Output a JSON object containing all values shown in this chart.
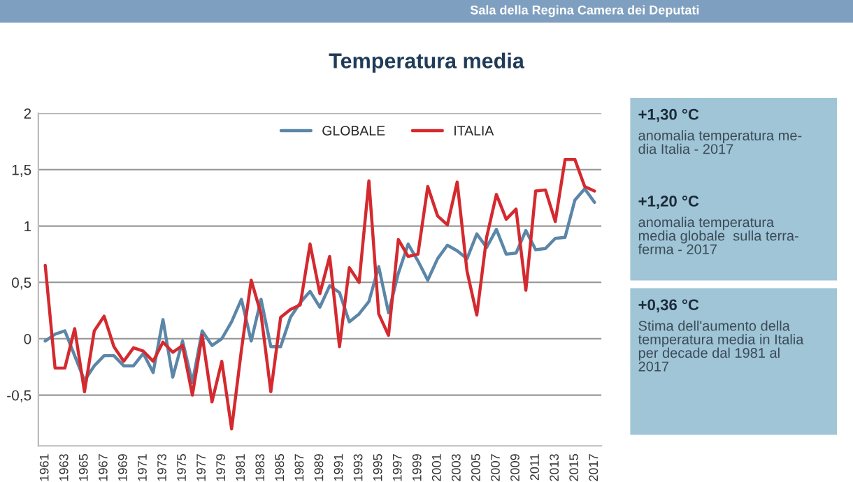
{
  "chart_data": {
    "type": "line",
    "title": "Temperatura media",
    "categories": [
      "1961",
      null,
      "1963",
      null,
      "1965",
      null,
      "1967",
      null,
      "1969",
      null,
      "1971",
      null,
      "1973",
      null,
      "1975",
      null,
      "1977",
      null,
      "1979",
      null,
      "1981",
      null,
      "1983",
      null,
      "1985",
      null,
      "1987",
      null,
      "1989",
      null,
      "1991",
      null,
      "1993",
      null,
      "1995",
      null,
      "1997",
      null,
      "1999",
      null,
      "2001",
      null,
      "2003",
      null,
      "2005",
      null,
      "2007",
      null,
      "2009",
      null,
      "2011",
      null,
      "2013",
      null,
      "2015",
      null,
      "2017"
    ],
    "series": [
      {
        "name": "GLOBALE",
        "color": "#5b86a8",
        "values": [
          -0.02,
          0.04,
          0.07,
          -0.15,
          -0.37,
          -0.24,
          -0.15,
          -0.15,
          -0.24,
          -0.24,
          -0.13,
          -0.3,
          0.17,
          -0.34,
          -0.02,
          -0.39,
          0.07,
          -0.06,
          0,
          0.15,
          0.35,
          -0.02,
          0.35,
          -0.07,
          -0.07,
          0.19,
          0.32,
          0.42,
          0.28,
          0.47,
          0.41,
          0.15,
          0.22,
          0.33,
          0.64,
          0.23,
          0.58,
          0.84,
          0.69,
          0.52,
          0.71,
          0.83,
          0.78,
          0.71,
          0.93,
          0.81,
          0.97,
          0.75,
          0.76,
          0.96,
          0.79,
          0.8,
          0.89,
          0.9,
          1.23,
          1.33,
          1.21
        ]
      },
      {
        "name": "ITALIA",
        "color": "#d42a2f",
        "values": [
          0.65,
          -0.26,
          -0.26,
          0.09,
          -0.47,
          0.07,
          0.2,
          -0.07,
          -0.2,
          -0.08,
          -0.11,
          -0.2,
          -0.03,
          -0.12,
          -0.06,
          -0.5,
          0.03,
          -0.56,
          -0.2,
          -0.8,
          -0.1,
          0.52,
          0.22,
          -0.47,
          0.19,
          0.26,
          0.3,
          0.84,
          0.4,
          0.73,
          -0.07,
          0.63,
          0.5,
          1.4,
          0.22,
          0.03,
          0.88,
          0.73,
          0.75,
          1.35,
          1.09,
          1.01,
          1.39,
          0.6,
          0.21,
          0.9,
          1.28,
          1.06,
          1.15,
          0.43,
          1.31,
          1.32,
          1.04,
          1.59,
          1.59,
          1.35,
          1.31
        ]
      }
    ],
    "ylim": [
      -0.95,
      2
    ],
    "yticks": [
      {
        "value": -0.5,
        "label": "-0,5"
      },
      0,
      {
        "value": 0.5,
        "label": "0,5"
      },
      1,
      {
        "value": 1.5,
        "label": "1,5"
      },
      2
    ],
    "grid": "y",
    "legend": "top",
    "marker": "none",
    "line_style": "solid",
    "annotations": [
      "Sala della Regina Camera dei Deputati",
      "+1,30 °C",
      "anomalia temperatura me-\ndia Italia - 2017",
      "+1,20 °C",
      "anomalia temperatura\nmedia globale  sulla terra-\nferma - 2017",
      "+0,36 °C",
      "Stima dell'aumento della\ntemperatura media in Italia\nper decade dal 1981 al\n2017"
    ]
  }
}
